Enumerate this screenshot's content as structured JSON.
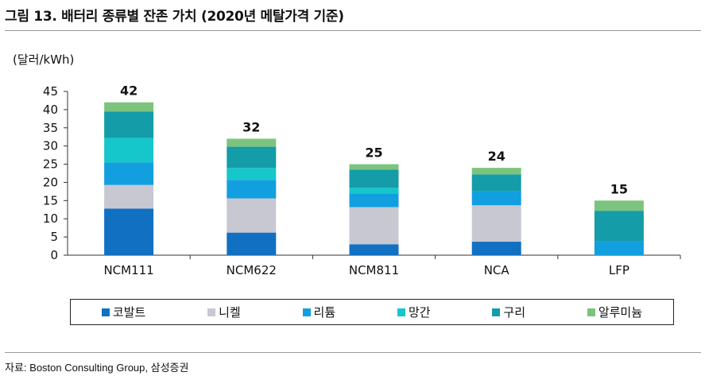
{
  "page": {
    "title": "그림 13. 배터리 종류별 잔존 가치 (2020년 메탈가격 기준)",
    "unit_label": "(달러/kWh)",
    "source": "자료: Boston Consulting Group, 삼성증권"
  },
  "colors": {
    "코발트": "#1170C2",
    "니켈": "#C8C8D2",
    "리튬": "#129FDF",
    "망간": "#15C6CB",
    "구리": "#149CA8",
    "알루미늄": "#7CC47E"
  },
  "chart_data": {
    "type": "bar",
    "stacked": true,
    "categories": [
      "NCM111",
      "NCM622",
      "NCM811",
      "NCA",
      "LFP"
    ],
    "series": [
      {
        "name": "코발트",
        "values": [
          12.8,
          6.2,
          3.0,
          3.7,
          0
        ]
      },
      {
        "name": "니켈",
        "values": [
          6.5,
          9.4,
          10.2,
          10.0,
          0
        ]
      },
      {
        "name": "리튬",
        "values": [
          6.2,
          5.1,
          3.8,
          3.8,
          3.8
        ]
      },
      {
        "name": "망간",
        "values": [
          6.7,
          3.3,
          1.5,
          0,
          0
        ]
      },
      {
        "name": "구리",
        "values": [
          7.3,
          5.8,
          5.0,
          4.7,
          8.4
        ]
      },
      {
        "name": "알루미늄",
        "values": [
          2.5,
          2.2,
          1.5,
          1.8,
          2.8
        ]
      }
    ],
    "totals": [
      42,
      32,
      25,
      24,
      15
    ],
    "ylim": [
      0,
      45
    ],
    "yticks": [
      0,
      5,
      10,
      15,
      20,
      25,
      30,
      35,
      40,
      45
    ],
    "grid": false,
    "legend_position": "bottom"
  }
}
